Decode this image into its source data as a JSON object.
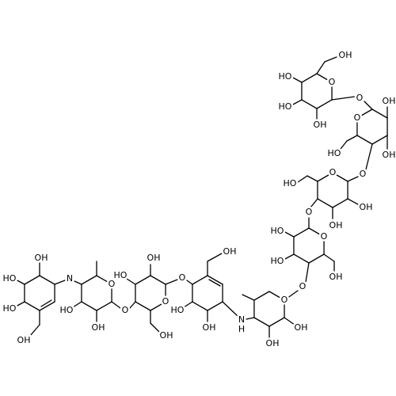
{
  "atoms": [
    "OH",
    "HO",
    "HO",
    "OH",
    "N",
    "O",
    "HO",
    "OH",
    "O",
    "O",
    "OH",
    "HO",
    "OH",
    "O",
    "OH",
    "HO",
    "OH",
    "N",
    "H",
    "O",
    "OH",
    "OH",
    "O",
    "O",
    "HO",
    "HO",
    "OH",
    "O",
    "O",
    "HO",
    "OH",
    "OH",
    "O",
    "O",
    "OH",
    "OH",
    "HO",
    "O",
    "O",
    "OH",
    "HO",
    "HO",
    "OH"
  ]
}
